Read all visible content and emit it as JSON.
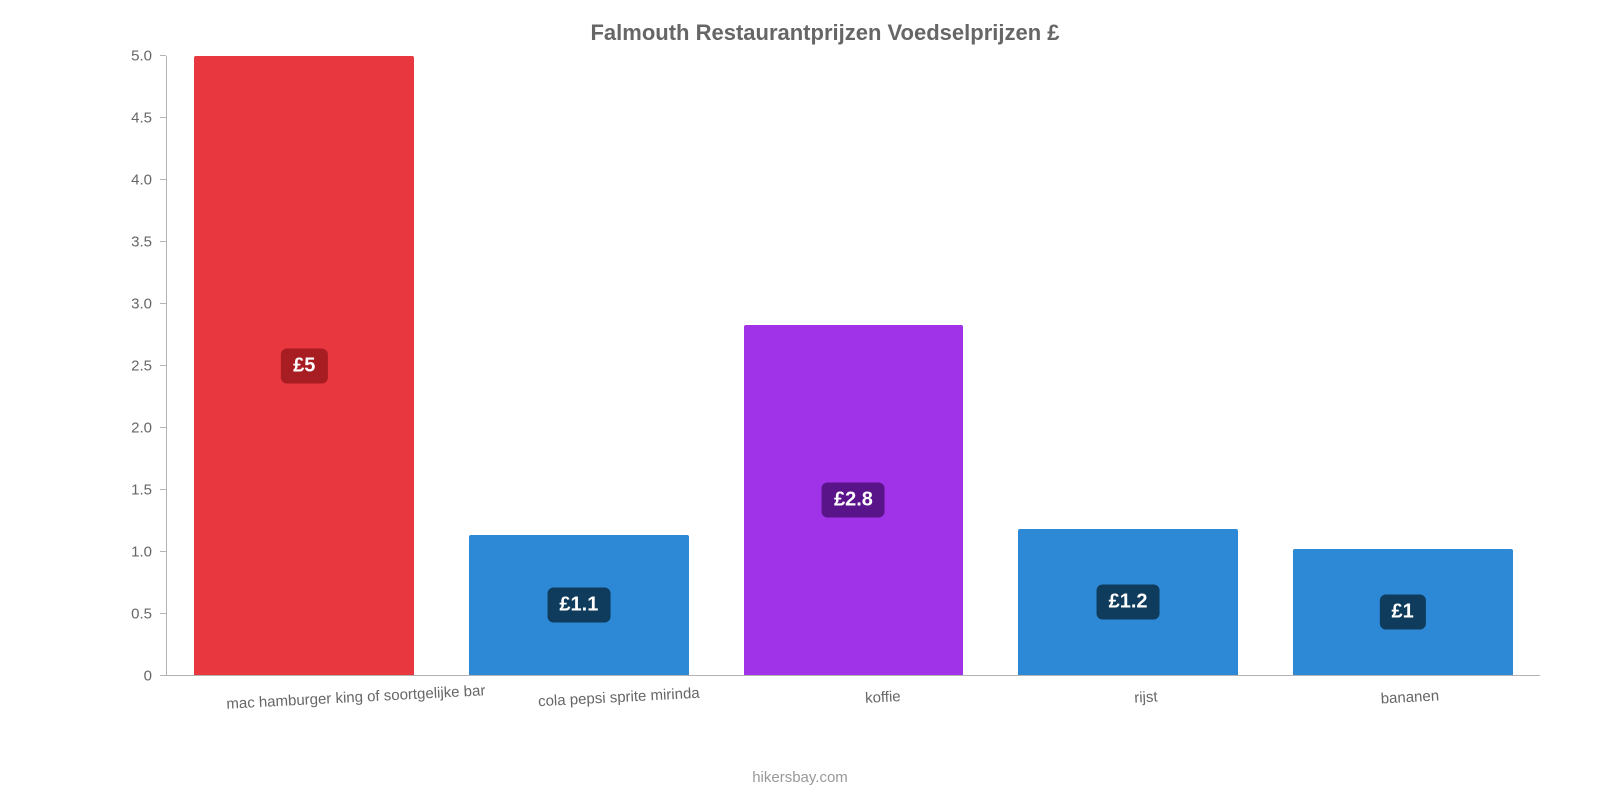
{
  "chart": {
    "type": "bar",
    "title": "Falmouth Restaurantprijzen Voedselprijzen £",
    "title_fontsize": 22,
    "title_color": "#666666",
    "background_color": "#ffffff",
    "axis_color": "#b3b3b3",
    "tick_label_color": "#666666",
    "tick_label_fontsize": 15,
    "x_label_fontsize": 15,
    "x_label_rotation_deg": -3,
    "ylim": [
      0,
      5.0
    ],
    "yticks": [
      "0",
      "0.5",
      "1.0",
      "1.5",
      "2.0",
      "2.5",
      "3.0",
      "3.5",
      "4.0",
      "4.5",
      "5.0"
    ],
    "ytick_values": [
      0,
      0.5,
      1.0,
      1.5,
      2.0,
      2.5,
      3.0,
      3.5,
      4.0,
      4.5,
      5.0
    ],
    "bar_width_pct": 80,
    "categories": [
      "mac hamburger king of soortgelijke bar",
      "cola pepsi sprite mirinda",
      "koffie",
      "rijst",
      "bananen"
    ],
    "values": [
      5.0,
      1.13,
      2.83,
      1.18,
      1.02
    ],
    "value_labels": [
      "£5",
      "£1.1",
      "£2.8",
      "£1.2",
      "£1"
    ],
    "bar_colors": [
      "#e8373e",
      "#2d89d6",
      "#a032e8",
      "#2d89d6",
      "#2d89d6"
    ],
    "badge_colors": [
      "#a71d22",
      "#0f3b5c",
      "#5a148a",
      "#0f3b5c",
      "#0f3b5c"
    ],
    "badge_text_color": "#ffffff",
    "badge_fontsize": 20,
    "caption": "hikersbay.com",
    "caption_color": "#999999",
    "caption_fontsize": 15
  }
}
